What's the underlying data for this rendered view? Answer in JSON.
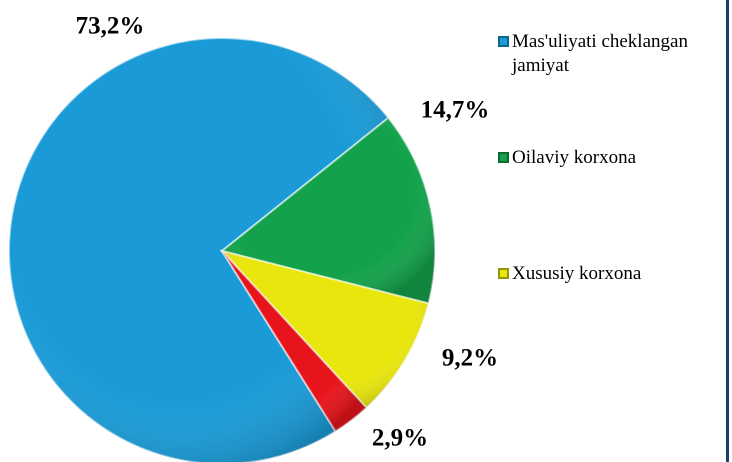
{
  "chart_data": {
    "type": "pie",
    "categories": [
      "Mas'uliyati cheklangan jamiyat",
      "Oilaviy korxona",
      "Xususiy korxona",
      null
    ],
    "values": [
      73.2,
      14.7,
      9.2,
      2.9
    ],
    "value_labels": [
      "73,2%",
      "14,7%",
      "9,2%",
      "2,9%"
    ],
    "colors": [
      "#1a9bd7",
      "#13a24b",
      "#e8e60c",
      "#e8141c"
    ],
    "legend": "right"
  }
}
